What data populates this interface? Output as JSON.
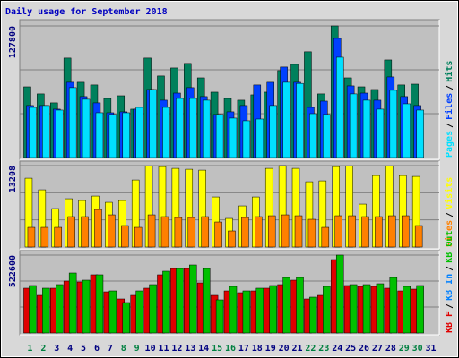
{
  "title": "Daily usage for September 2018",
  "categories": [
    "1",
    "2",
    "3",
    "4",
    "5",
    "6",
    "7",
    "8",
    "9",
    "10",
    "11",
    "12",
    "13",
    "14",
    "15",
    "16",
    "17",
    "18",
    "19",
    "20",
    "21",
    "22",
    "23",
    "24",
    "25",
    "26",
    "27",
    "28",
    "29",
    "30",
    "31"
  ],
  "category_colors": [
    "#008040",
    "#008040",
    "#000080",
    "#000080",
    "#000080",
    "#000080",
    "#000080",
    "#008040",
    "#008040",
    "#000080",
    "#000080",
    "#000080",
    "#000080",
    "#000080",
    "#008040",
    "#008040",
    "#000080",
    "#000080",
    "#000080",
    "#000080",
    "#000080",
    "#008040",
    "#008040",
    "#000080",
    "#000080",
    "#000080",
    "#000080",
    "#000080",
    "#008040",
    "#008040",
    "#000080"
  ],
  "legend_separator": "/",
  "chart_data": [
    {
      "type": "bar",
      "ylim": [
        0,
        127800
      ],
      "yticks": [
        127800
      ],
      "grid_lines": 3,
      "legend_order": "reverse",
      "series": [
        {
          "name": "Hits",
          "color": "#00805c",
          "values": [
            68700,
            61800,
            53100,
            96600,
            73100,
            70500,
            57400,
            60000,
            47000,
            96600,
            79200,
            87000,
            91400,
            77400,
            63500,
            57400,
            55700,
            60900,
            63500,
            84400,
            90500,
            102700,
            61800,
            127800,
            77400,
            68700,
            66100,
            94800,
            70500,
            71300,
            null
          ]
        },
        {
          "name": "Files",
          "color": "#0040ff",
          "values": [
            50500,
            50500,
            47000,
            73100,
            59200,
            53100,
            43500,
            44400,
            47000,
            66100,
            55700,
            62600,
            67900,
            59200,
            41800,
            44400,
            50500,
            70500,
            73100,
            87900,
            73100,
            48700,
            54800,
            115700,
            69600,
            62600,
            55700,
            78300,
            59200,
            50500,
            null
          ]
        },
        {
          "name": "Pages",
          "color": "#00e0ff",
          "values": [
            48700,
            50500,
            46100,
            67900,
            56600,
            43500,
            41800,
            43500,
            48700,
            66100,
            48700,
            57400,
            57400,
            55700,
            41800,
            38300,
            35700,
            37400,
            50500,
            73100,
            72000,
            42600,
            41800,
            97400,
            61800,
            55700,
            47000,
            65300,
            52200,
            46100,
            null
          ]
        }
      ]
    },
    {
      "type": "bar",
      "ylim": [
        0,
        13208
      ],
      "yticks": [
        13208
      ],
      "grid_lines": 3,
      "legend_order": "reverse",
      "series": [
        {
          "name": "Visits",
          "color": "#ffff00",
          "values": [
            11165,
            9280,
            6235,
            7830,
            7540,
            8265,
            7250,
            7540,
            10875,
            13100,
            13050,
            12760,
            12615,
            12470,
            8120,
            4640,
            6670,
            8120,
            12760,
            13208,
            12760,
            10585,
            10730,
            13050,
            13150,
            6960,
            11600,
            13100,
            11600,
            11455,
            null
          ]
        },
        {
          "name": "Sites",
          "color": "#ff8000",
          "values": [
            3190,
            3190,
            3190,
            4930,
            4930,
            6090,
            5220,
            3480,
            3190,
            5220,
            4930,
            4785,
            4785,
            4930,
            4060,
            2610,
            4785,
            4930,
            5075,
            5220,
            5075,
            4495,
            3190,
            5075,
            5075,
            4930,
            4930,
            5075,
            5075,
            3480,
            null
          ]
        }
      ]
    },
    {
      "type": "bar",
      "ylim": [
        0,
        522600
      ],
      "yticks": [
        522600
      ],
      "grid_lines": 3,
      "legend_order": "forward",
      "series": [
        {
          "name": "KB F",
          "color": "#e00000",
          "values": [
            300400,
            252300,
            300400,
            348400,
            342400,
            390500,
            276300,
            228300,
            252300,
            300400,
            390500,
            432500,
            432500,
            336400,
            252300,
            282300,
            270300,
            282300,
            300400,
            324400,
            354400,
            228300,
            252300,
            492600,
            318400,
            312400,
            312400,
            300400,
            282300,
            294300,
            null
          ]
        },
        {
          "name": "KB In",
          "color": "#0080ff",
          "values": [
            0,
            0,
            0,
            0,
            0,
            0,
            0,
            0,
            0,
            0,
            0,
            0,
            0,
            0,
            0,
            0,
            0,
            0,
            0,
            0,
            0,
            0,
            0,
            0,
            0,
            0,
            0,
            0,
            0,
            0,
            null
          ]
        },
        {
          "name": "KB Out",
          "color": "#00c000",
          "values": [
            318400,
            300400,
            324400,
            402500,
            354400,
            390500,
            282300,
            204200,
            282300,
            324400,
            414500,
            432500,
            456500,
            432500,
            222300,
            312400,
            282300,
            300400,
            318400,
            372400,
            372400,
            240300,
            312400,
            522600,
            324400,
            324400,
            330400,
            372400,
            312400,
            318400,
            null
          ]
        }
      ]
    }
  ]
}
